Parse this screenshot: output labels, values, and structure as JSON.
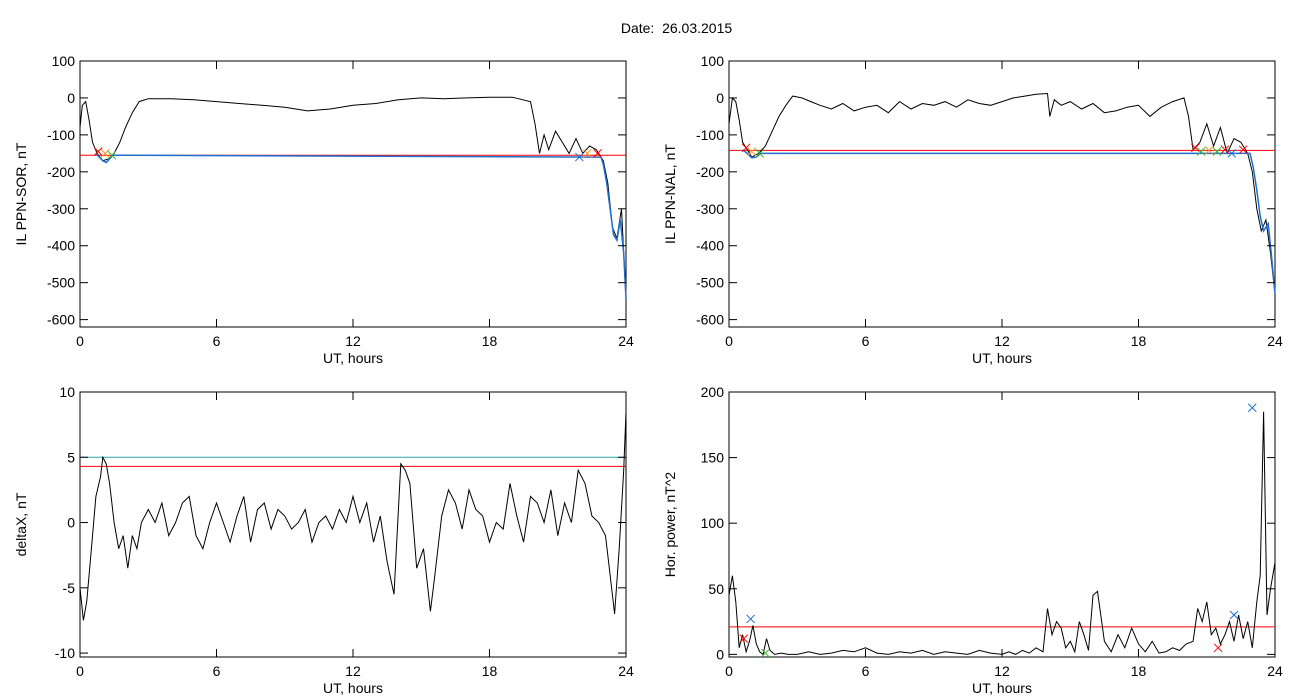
{
  "figure": {
    "title": "Date:  26.03.2015"
  },
  "chart_data": [
    {
      "type": "line",
      "ylabel": "IL PPN-SOR, nT",
      "xlabel": "UT, hours",
      "xlim": [
        0,
        24
      ],
      "ylim": [
        -620,
        100
      ],
      "xticks": [
        0,
        6,
        12,
        18,
        24
      ],
      "yticks": [
        100,
        0,
        -100,
        -200,
        -300,
        -400,
        -500,
        -600
      ],
      "threshold": -155,
      "threshold_color": "#ff0000",
      "series": [
        {
          "color": "#000000",
          "x": [
            0,
            0.1,
            0.25,
            0.4,
            0.55,
            0.75,
            1.0,
            1.25,
            1.5,
            1.75,
            2.0,
            2.3,
            2.6,
            3.0,
            4,
            5,
            6,
            7,
            8,
            9,
            10,
            11,
            12,
            13,
            14,
            15,
            16,
            17,
            18,
            19,
            19.8,
            20.0,
            20.2,
            20.4,
            20.6,
            20.9,
            21.2,
            21.5,
            21.8,
            22.1,
            22.4,
            22.7,
            23.0,
            23.2,
            23.4,
            23.6,
            23.8,
            24
          ],
          "y": [
            -80,
            -20,
            -10,
            -60,
            -120,
            -150,
            -170,
            -165,
            -150,
            -120,
            -80,
            -40,
            -10,
            -2,
            -2,
            -5,
            -10,
            -15,
            -20,
            -25,
            -35,
            -30,
            -20,
            -15,
            -5,
            0,
            -2,
            0,
            2,
            2,
            -10,
            -70,
            -150,
            -100,
            -140,
            -90,
            -120,
            -150,
            -110,
            -150,
            -130,
            -140,
            -170,
            -230,
            -350,
            -380,
            -300,
            -545
          ]
        },
        {
          "color": "#1f6fd0",
          "x": [
            0.7,
            0.85,
            1.0,
            1.15,
            1.3,
            1.45,
            22.9,
            23.0,
            23.15,
            23.3,
            23.45,
            23.6,
            23.75,
            23.9,
            24
          ],
          "y": [
            -150,
            -160,
            -170,
            -175,
            -165,
            -155,
            -160,
            -180,
            -230,
            -300,
            -370,
            -385,
            -330,
            -420,
            -545
          ]
        }
      ],
      "markers": [
        {
          "x": 0.8,
          "y": -145,
          "color": "#ff0000"
        },
        {
          "x": 1.1,
          "y": -150,
          "color": "#ff9933"
        },
        {
          "x": 1.4,
          "y": -155,
          "color": "#33bb33"
        },
        {
          "x": 21.95,
          "y": -160,
          "color": "#1f6fd0"
        },
        {
          "x": 22.3,
          "y": -150,
          "color": "#ff9933"
        },
        {
          "x": 22.75,
          "y": -150,
          "color": "#ff0000"
        }
      ]
    },
    {
      "type": "line",
      "ylabel": "IL PPN-NAL, nT",
      "xlabel": "UT, hours",
      "xlim": [
        0,
        24
      ],
      "ylim": [
        -620,
        100
      ],
      "xticks": [
        0,
        6,
        12,
        18,
        24
      ],
      "yticks": [
        100,
        0,
        -100,
        -200,
        -300,
        -400,
        -500,
        -600
      ],
      "threshold": -142,
      "threshold_color": "#ff0000",
      "series": [
        {
          "color": "#000000",
          "x": [
            0,
            0.15,
            0.3,
            0.45,
            0.6,
            0.8,
            1.0,
            1.3,
            1.6,
            1.9,
            2.2,
            2.5,
            2.8,
            3.2,
            3.6,
            4.0,
            4.5,
            5,
            5.5,
            6,
            6.5,
            7,
            7.5,
            8,
            8.5,
            9,
            9.5,
            10,
            10.5,
            11,
            11.5,
            12,
            12.5,
            13,
            13.5,
            14,
            14.1,
            14.3,
            14.6,
            15,
            15.5,
            16,
            16.5,
            17,
            17.5,
            18,
            18.5,
            19,
            19.5,
            20,
            20.2,
            20.4,
            20.7,
            21.0,
            21.3,
            21.6,
            21.9,
            22.2,
            22.5,
            22.8,
            23.0,
            23.2,
            23.4,
            23.6,
            23.8,
            24
          ],
          "y": [
            -70,
            0,
            -10,
            -60,
            -120,
            -140,
            -160,
            -150,
            -130,
            -90,
            -50,
            -20,
            5,
            0,
            -10,
            -20,
            -30,
            -15,
            -35,
            -25,
            -20,
            -40,
            -10,
            -30,
            -15,
            -20,
            -10,
            -25,
            -5,
            -15,
            -20,
            -10,
            0,
            5,
            10,
            12,
            -50,
            -5,
            -20,
            -10,
            -30,
            -15,
            -40,
            -35,
            -25,
            -20,
            -50,
            -25,
            -10,
            0,
            -50,
            -140,
            -120,
            -70,
            -130,
            -80,
            -150,
            -110,
            -120,
            -150,
            -200,
            -300,
            -360,
            -330,
            -420,
            -530
          ]
        },
        {
          "color": "#1f6fd0",
          "x": [
            0.6,
            0.8,
            1.0,
            1.2,
            1.4,
            22.9,
            23.05,
            23.2,
            23.35,
            23.5,
            23.7,
            23.85,
            24
          ],
          "y": [
            -140,
            -150,
            -162,
            -160,
            -150,
            -150,
            -190,
            -250,
            -320,
            -360,
            -340,
            -430,
            -530
          ]
        }
      ],
      "markers": [
        {
          "x": 0.75,
          "y": -135,
          "color": "#ff0000"
        },
        {
          "x": 1.0,
          "y": -145,
          "color": "#ff9933"
        },
        {
          "x": 1.35,
          "y": -150,
          "color": "#33bb33"
        },
        {
          "x": 20.5,
          "y": -135,
          "color": "#ff0000"
        },
        {
          "x": 20.75,
          "y": -145,
          "color": "#33bb33"
        },
        {
          "x": 21.1,
          "y": -142,
          "color": "#ff9933"
        },
        {
          "x": 21.45,
          "y": -145,
          "color": "#33bb33"
        },
        {
          "x": 21.8,
          "y": -140,
          "color": "#ff0000"
        },
        {
          "x": 22.1,
          "y": -150,
          "color": "#1f6fd0"
        },
        {
          "x": 22.6,
          "y": -140,
          "color": "#ff0000"
        }
      ]
    },
    {
      "type": "line",
      "ylabel": "deltaX, nT",
      "xlabel": "UT, hours",
      "xlim": [
        0,
        24
      ],
      "ylim": [
        -10.3,
        10
      ],
      "xticks": [
        0,
        6,
        12,
        18,
        24
      ],
      "yticks": [
        10,
        5,
        0,
        -5,
        -10
      ],
      "threshold": 4.3,
      "threshold_color": "#ff0000",
      "threshold2": 5.0,
      "threshold2_color": "#2aa6a0",
      "series": [
        {
          "color": "#000000",
          "x": [
            0,
            0.15,
            0.3,
            0.5,
            0.7,
            0.9,
            1.0,
            1.15,
            1.3,
            1.5,
            1.7,
            1.9,
            2.1,
            2.3,
            2.5,
            2.7,
            3.0,
            3.3,
            3.6,
            3.9,
            4.2,
            4.5,
            4.8,
            5.1,
            5.4,
            5.7,
            6.0,
            6.3,
            6.6,
            6.9,
            7.2,
            7.5,
            7.8,
            8.1,
            8.4,
            8.7,
            9.0,
            9.3,
            9.6,
            9.9,
            10.2,
            10.5,
            10.8,
            11.1,
            11.4,
            11.7,
            12.0,
            12.3,
            12.6,
            12.9,
            13.2,
            13.5,
            13.8,
            14.1,
            14.3,
            14.5,
            14.8,
            15.1,
            15.4,
            15.6,
            15.9,
            16.2,
            16.5,
            16.8,
            17.1,
            17.4,
            17.7,
            18.0,
            18.3,
            18.6,
            18.9,
            19.2,
            19.5,
            19.8,
            20.1,
            20.4,
            20.7,
            21.0,
            21.3,
            21.6,
            21.9,
            22.2,
            22.5,
            22.8,
            23.1,
            23.3,
            23.5,
            23.7,
            23.9,
            24
          ],
          "y": [
            -5,
            -7.5,
            -6,
            -2,
            2,
            3.5,
            5,
            4.5,
            3,
            0,
            -2,
            -1,
            -3.5,
            -1,
            -2,
            0,
            1,
            0,
            1.5,
            -1,
            0,
            1.5,
            2,
            -1,
            -2,
            0,
            1.5,
            0,
            -1.5,
            0.5,
            2,
            -1.5,
            1,
            1.5,
            -0.5,
            1,
            0.5,
            -0.5,
            0,
            1,
            -1.5,
            0,
            0.5,
            -0.5,
            1,
            0,
            2,
            0,
            1.5,
            -1.5,
            0.5,
            -3,
            -5.5,
            4.5,
            4,
            3,
            -3.5,
            -2,
            -6.8,
            -4,
            0.5,
            2.5,
            1.5,
            -0.5,
            2.5,
            1,
            0.5,
            -1.5,
            0,
            -0.5,
            3,
            0.5,
            -1.5,
            2,
            1.5,
            0,
            2.5,
            -1,
            1.5,
            0,
            4,
            3,
            0.5,
            0,
            -1,
            -4,
            -7,
            -2,
            4,
            8.5
          ]
        }
      ],
      "markers": []
    },
    {
      "type": "line",
      "ylabel": "Hor. power, nT^2",
      "xlabel": "UT, hours",
      "xlim": [
        0,
        24
      ],
      "ylim": [
        -2,
        200
      ],
      "xticks": [
        0,
        6,
        12,
        18,
        24
      ],
      "yticks": [
        200,
        150,
        100,
        50,
        0
      ],
      "threshold": 21,
      "threshold_color": "#ff0000",
      "series": [
        {
          "color": "#000000",
          "x": [
            0,
            0.15,
            0.3,
            0.45,
            0.6,
            0.75,
            0.9,
            1.05,
            1.2,
            1.35,
            1.5,
            1.65,
            1.8,
            2.0,
            2.3,
            2.6,
            3.0,
            3.5,
            4.0,
            4.5,
            5.0,
            5.5,
            6.0,
            6.5,
            7.0,
            7.5,
            8.0,
            8.5,
            9.0,
            9.5,
            10.0,
            10.5,
            11.0,
            11.5,
            12.0,
            12.3,
            12.6,
            12.9,
            13.2,
            13.5,
            13.8,
            14.0,
            14.2,
            14.4,
            14.6,
            14.8,
            15.0,
            15.2,
            15.4,
            15.6,
            15.8,
            16.0,
            16.2,
            16.5,
            16.8,
            17.1,
            17.4,
            17.7,
            18.0,
            18.3,
            18.6,
            18.9,
            19.2,
            19.5,
            19.8,
            20.1,
            20.4,
            20.6,
            20.8,
            21.0,
            21.2,
            21.4,
            21.6,
            21.8,
            22.0,
            22.2,
            22.4,
            22.6,
            22.8,
            23.0,
            23.2,
            23.35,
            23.5,
            23.65,
            23.8,
            24
          ],
          "y": [
            45,
            60,
            40,
            5,
            15,
            2,
            10,
            22,
            8,
            2,
            0,
            12,
            3,
            0,
            1,
            0,
            0,
            2,
            0,
            1,
            3,
            2,
            5,
            1,
            0,
            2,
            1,
            3,
            0,
            2,
            1,
            0,
            3,
            1,
            0,
            2,
            0,
            3,
            1,
            5,
            2,
            35,
            15,
            25,
            20,
            5,
            10,
            2,
            25,
            15,
            3,
            45,
            48,
            10,
            2,
            15,
            5,
            20,
            8,
            2,
            10,
            1,
            2,
            5,
            3,
            8,
            10,
            35,
            25,
            40,
            15,
            20,
            8,
            15,
            25,
            10,
            30,
            12,
            25,
            5,
            40,
            60,
            185,
            30,
            50,
            70
          ]
        }
      ],
      "markers": [
        {
          "x": 0.65,
          "y": 12,
          "color": "#ff0000"
        },
        {
          "x": 0.95,
          "y": 27,
          "color": "#1f6fd0"
        },
        {
          "x": 1.6,
          "y": 1,
          "color": "#33bb33"
        },
        {
          "x": 21.5,
          "y": 5,
          "color": "#ff0000"
        },
        {
          "x": 22.2,
          "y": 30,
          "color": "#1f6fd0"
        },
        {
          "x": 23.0,
          "y": 188,
          "color": "#1f6fd0"
        }
      ]
    }
  ]
}
